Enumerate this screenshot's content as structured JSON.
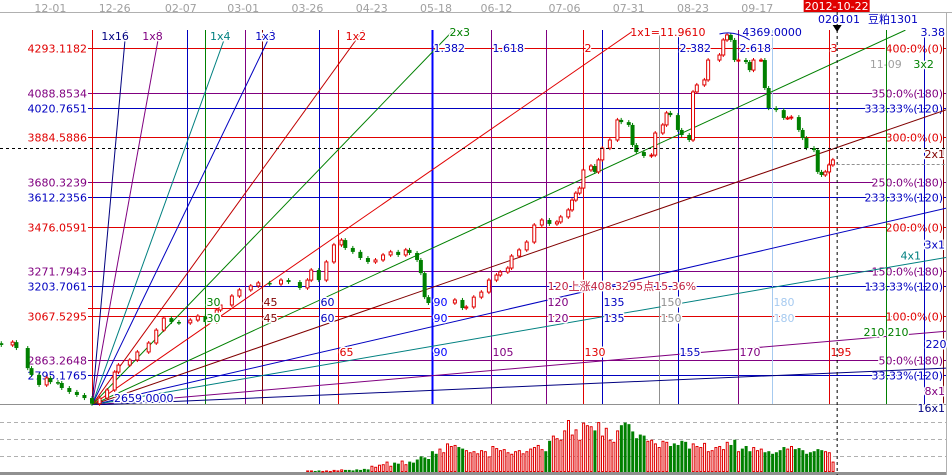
{
  "header": {
    "symbol_code": "020101",
    "symbol_name": "豆粕1301",
    "cursor_date": "2012-10-22"
  },
  "colors": {
    "up": "#e00000",
    "down": "#008000",
    "axis": "#a0a0a0",
    "cursor_date_bg": "#e00000"
  },
  "date_axis": [
    {
      "label": "12-01",
      "bar": -11
    },
    {
      "label": "12-26",
      "bar": 6
    },
    {
      "label": "02-07",
      "bar": 23.5
    },
    {
      "label": "03-01",
      "bar": 40
    },
    {
      "label": "03-26",
      "bar": 57
    },
    {
      "label": "04-23",
      "bar": 74
    },
    {
      "label": "05-18",
      "bar": 91
    },
    {
      "label": "06-12",
      "bar": 107
    },
    {
      "label": "07-06",
      "bar": 125
    },
    {
      "label": "07-31",
      "bar": 142
    },
    {
      "label": "08-23",
      "bar": 159
    },
    {
      "label": "09-17",
      "bar": 176
    },
    {
      "label": "11-09",
      "bar": 210
    }
  ],
  "cursor": {
    "bar": 197,
    "price_crosshair": 3835
  },
  "price_levels": [
    {
      "price": "4293.1182",
      "pct": "400.0%(0)",
      "color": "#e00000"
    },
    {
      "price": "4088.8534",
      "pct": "350.0%(180)",
      "color": "#800080"
    },
    {
      "price": "4020.7651",
      "pct": "333.33%(120)",
      "color": "#0000c0"
    },
    {
      "price": "3884.5886",
      "pct": "300.0%(0)",
      "color": "#e00000"
    },
    {
      "price": "3680.3239",
      "pct": "250.0%(180)",
      "color": "#800080"
    },
    {
      "price": "3612.2356",
      "pct": "233.33%(120)",
      "color": "#0000c0"
    },
    {
      "price": "3476.0591",
      "pct": "200.0%(0)",
      "color": "#e00000"
    },
    {
      "price": "3271.7943",
      "pct": "150.0%(180)",
      "color": "#800080"
    },
    {
      "price": "3203.7061",
      "pct": "133.33%(120)",
      "color": "#0000c0"
    },
    {
      "price": "3067.5295",
      "pct": "100.0%(0)",
      "color": "#e00000"
    },
    {
      "price": "2863.2648",
      "pct": "50.0%(180)",
      "color": "#800080"
    },
    {
      "price": "2795.1765",
      "pct": "33.33%(120)",
      "color": "#0000c0"
    }
  ],
  "gann": {
    "origin_bar": 0,
    "origin_price": 2659,
    "unit": 11.961,
    "origin_label": "2659.0000",
    "high_label": "4369.0000",
    "measure_label": "120上涨408.3295点15.36%",
    "fans": [
      {
        "name": "1x16",
        "k": 16,
        "color": "#000080"
      },
      {
        "name": "1x8",
        "k": 8,
        "color": "#800080"
      },
      {
        "name": "1x4",
        "k": 4,
        "color": "#008080"
      },
      {
        "name": "1x3",
        "k": 3,
        "color": "#0000c0"
      },
      {
        "name": "1x2",
        "k": 2,
        "color": "#c00000"
      },
      {
        "name": "2x3",
        "k": 1.5,
        "color": "#008000"
      },
      {
        "name": "1x1=11.9610",
        "k": 1,
        "color": "#e00000"
      },
      {
        "name": "3x2",
        "k": 0.6667,
        "color": "#008000"
      },
      {
        "name": "2x1",
        "k": 0.5,
        "color": "#800000"
      },
      {
        "name": "3x1",
        "k": 0.3333,
        "color": "#0000c0"
      },
      {
        "name": "4x1",
        "k": 0.25,
        "color": "#008080"
      },
      {
        "name": "8x1",
        "k": 0.125,
        "color": "#800080"
      },
      {
        "name": "16x1",
        "k": 0.0625,
        "color": "#000080"
      }
    ]
  },
  "time_lines": [
    {
      "bar": 0,
      "color": "#e00000"
    },
    {
      "bar": 25,
      "color": "#0000c0"
    },
    {
      "bar": 30,
      "color": "#008000",
      "mid": "30"
    },
    {
      "bar": 40.5,
      "color": "#800080"
    },
    {
      "bar": 45,
      "color": "#800000",
      "mid": "45"
    },
    {
      "bar": 60,
      "color": "#0000c0",
      "mid": "60"
    },
    {
      "bar": 65,
      "color": "#e00000",
      "low": "65"
    },
    {
      "bar": 90,
      "color": "#0000ff",
      "mid": "90",
      "low": "90",
      "fib": "1.382"
    },
    {
      "bar": 105.5,
      "color": "#800080",
      "low": "105",
      "fib": "1.618"
    },
    {
      "bar": 120,
      "color": "#800080",
      "mid": "120"
    },
    {
      "bar": 130,
      "color": "#e00000",
      "low": "130",
      "fib": "2"
    },
    {
      "bar": 135,
      "color": "#0000c0",
      "mid": "135"
    },
    {
      "bar": 150,
      "color": "#909090",
      "mid": "150"
    },
    {
      "bar": 155,
      "color": "#0000c0",
      "low": "155",
      "fib": "2.382"
    },
    {
      "bar": 171,
      "color": "#800080",
      "low": "170",
      "fib": "2.618"
    },
    {
      "bar": 180,
      "color": "#a6caf0",
      "mid": "180"
    },
    {
      "bar": 195,
      "color": "#e00000",
      "low": "195",
      "fib": "3"
    },
    {
      "bar": 210,
      "color": "#008000",
      "mid": "210"
    },
    {
      "bar": 220,
      "color": "#0000c0",
      "low": "220"
    },
    {
      "bar": 225,
      "color": "#800000",
      "fib": "3.38"
    }
  ],
  "chart_data": {
    "type": "candlestick",
    "x_unit": "bars from Gann origin",
    "ylim": [
      2659,
      4375
    ],
    "closes": [
      [
        -24,
        2934
      ],
      [
        -21,
        2947
      ],
      [
        -20,
        2920
      ],
      [
        -17,
        2828
      ],
      [
        -16,
        2797
      ],
      [
        -14,
        2751
      ],
      [
        -12,
        2783
      ],
      [
        -11,
        2764
      ],
      [
        -9,
        2760
      ],
      [
        -8,
        2737
      ],
      [
        -6,
        2719
      ],
      [
        -4,
        2705
      ],
      [
        -2,
        2691
      ],
      [
        0,
        2665
      ],
      [
        2,
        2691
      ],
      [
        4,
        2728
      ],
      [
        6,
        2810
      ],
      [
        7,
        2842
      ],
      [
        10,
        2865
      ],
      [
        12,
        2902
      ],
      [
        15,
        2943
      ],
      [
        17,
        3002
      ],
      [
        19,
        3057
      ],
      [
        21,
        3039
      ],
      [
        23,
        3035
      ],
      [
        26,
        3048
      ],
      [
        28,
        3066
      ],
      [
        30,
        3039
      ],
      [
        33,
        3094
      ],
      [
        34,
        3117
      ],
      [
        37,
        3158
      ],
      [
        39,
        3186
      ],
      [
        42,
        3204
      ],
      [
        44,
        3218
      ],
      [
        47,
        3213
      ],
      [
        50,
        3231
      ],
      [
        52,
        3222
      ],
      [
        55,
        3195
      ],
      [
        57,
        3231
      ],
      [
        58,
        3277
      ],
      [
        60,
        3231
      ],
      [
        62,
        3314
      ],
      [
        64,
        3392
      ],
      [
        66,
        3414
      ],
      [
        67,
        3378
      ],
      [
        69,
        3360
      ],
      [
        71,
        3332
      ],
      [
        73,
        3314
      ],
      [
        75,
        3323
      ],
      [
        77,
        3346
      ],
      [
        79,
        3360
      ],
      [
        81,
        3346
      ],
      [
        83,
        3369
      ],
      [
        84,
        3355
      ],
      [
        86,
        3323
      ],
      [
        87,
        3263
      ],
      [
        88,
        3153
      ],
      [
        89,
        3126
      ],
      [
        91,
        3117
      ],
      [
        93,
        3126
      ],
      [
        96,
        3140
      ],
      [
        98,
        3103
      ],
      [
        99,
        3108
      ],
      [
        101,
        3153
      ],
      [
        103,
        3176
      ],
      [
        105,
        3231
      ],
      [
        107,
        3254
      ],
      [
        108,
        3268
      ],
      [
        110,
        3286
      ],
      [
        111,
        3341
      ],
      [
        113,
        3369
      ],
      [
        115,
        3405
      ],
      [
        117,
        3483
      ],
      [
        119,
        3506
      ],
      [
        121,
        3488
      ],
      [
        123,
        3497
      ],
      [
        124,
        3520
      ],
      [
        126,
        3552
      ],
      [
        127,
        3597
      ],
      [
        128,
        3629
      ],
      [
        129,
        3652
      ],
      [
        130,
        3735
      ],
      [
        132,
        3753
      ],
      [
        133,
        3726
      ],
      [
        134,
        3781
      ],
      [
        135,
        3835
      ],
      [
        137,
        3872
      ],
      [
        139,
        3964
      ],
      [
        140,
        3954
      ],
      [
        142,
        3941
      ],
      [
        143,
        3849
      ],
      [
        144,
        3817
      ],
      [
        146,
        3799
      ],
      [
        148,
        3803
      ],
      [
        149,
        3904
      ],
      [
        151,
        3941
      ],
      [
        152,
        3996
      ],
      [
        153,
        3986
      ],
      [
        155,
        3918
      ],
      [
        156,
        3895
      ],
      [
        158,
        3872
      ],
      [
        159,
        4092
      ],
      [
        160,
        4124
      ],
      [
        162,
        4147
      ],
      [
        163,
        4238
      ],
      [
        166,
        4261
      ],
      [
        167,
        4330
      ],
      [
        168,
        4353
      ],
      [
        169,
        4330
      ],
      [
        170,
        4238
      ],
      [
        171,
        4238
      ],
      [
        173,
        4229
      ],
      [
        174,
        4192
      ],
      [
        175,
        4238
      ],
      [
        177,
        4238
      ],
      [
        178,
        4110
      ],
      [
        179,
        4018
      ],
      [
        181,
        4009
      ],
      [
        183,
        3973
      ],
      [
        184,
        3973
      ],
      [
        185,
        3977
      ],
      [
        187,
        3918
      ],
      [
        188,
        3881
      ],
      [
        189,
        3835
      ],
      [
        191,
        3826
      ],
      [
        192,
        3726
      ],
      [
        193,
        3712
      ],
      [
        194,
        3726
      ],
      [
        195,
        3758
      ],
      [
        196,
        3781
      ]
    ],
    "volume": {
      "start_bar": 57,
      "values": [
        3,
        3,
        2,
        3,
        2,
        3,
        2,
        4,
        3,
        5,
        4,
        4,
        3,
        5,
        4,
        6,
        5,
        12,
        10,
        14,
        15,
        20,
        12,
        18,
        16,
        22,
        15,
        20,
        18,
        24,
        30,
        28,
        25,
        40,
        35,
        45,
        38,
        55,
        50,
        52,
        48,
        45,
        42,
        38,
        40,
        36,
        42,
        40,
        30,
        50,
        46,
        42,
        44,
        38,
        35,
        40,
        42,
        36,
        40,
        45,
        48,
        52,
        44,
        40,
        60,
        70,
        65,
        62,
        80,
        100,
        72,
        82,
        62,
        95,
        90,
        88,
        80,
        96,
        70,
        85,
        62,
        58,
        80,
        90,
        95,
        92,
        78,
        65,
        72,
        70,
        60,
        62,
        55,
        48,
        60,
        58,
        50,
        55,
        52,
        60,
        58,
        45,
        55,
        50,
        48,
        56,
        40,
        42,
        48,
        50,
        44,
        58,
        52,
        62,
        40,
        45,
        50,
        40,
        48,
        42,
        45,
        38,
        40,
        35,
        38,
        42,
        48,
        45,
        50,
        44,
        46,
        42,
        35,
        38,
        40,
        44,
        42,
        40,
        38,
        20
      ]
    }
  }
}
